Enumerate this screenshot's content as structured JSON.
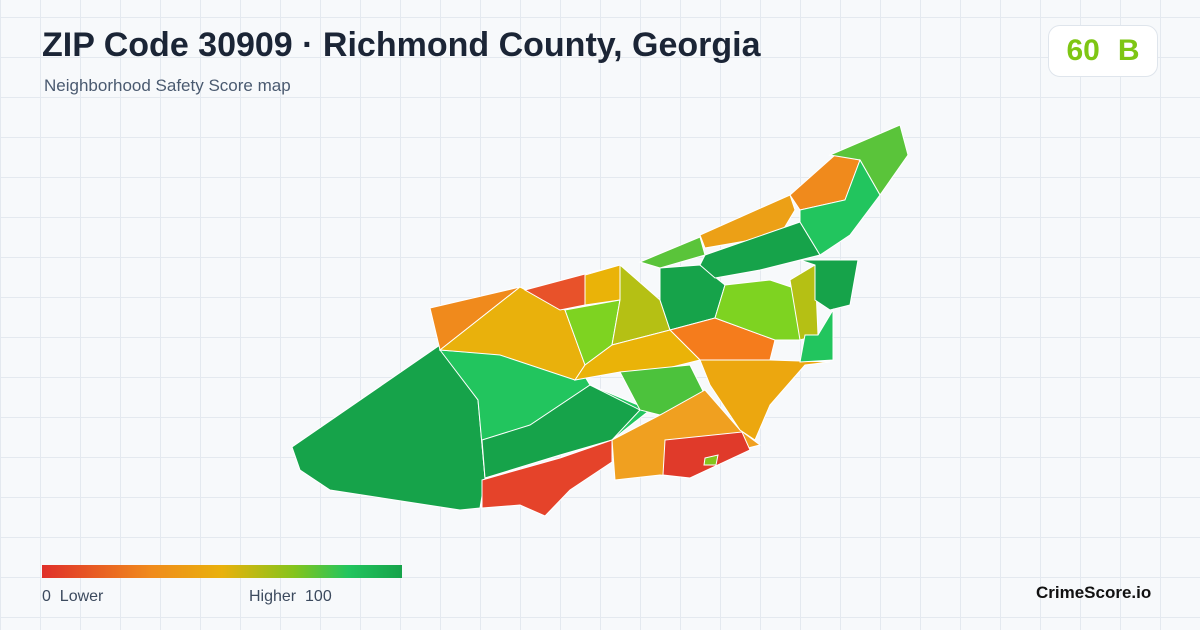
{
  "header": {
    "title": "ZIP Code 30909 · Richmond County, Georgia",
    "subtitle": "Neighborhood Safety Score map"
  },
  "badge": {
    "score": "60",
    "grade": "B"
  },
  "legend": {
    "min": "0",
    "min_label": "Lower",
    "max_label": "Higher",
    "max": "100"
  },
  "brand": "CrimeScore.io"
}
